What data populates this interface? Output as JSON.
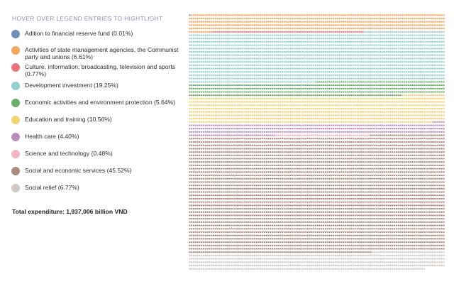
{
  "legend_title": "HOVER OVER LEGEND ENTRIES TO HIGHTLIGHT",
  "total_label": "Total expenditure: 1,937,006 billion VND",
  "chart_data": {
    "type": "waffle",
    "unit_total": 10000,
    "columns": 130,
    "series": [
      {
        "name": "Adition to financial reserve fund (0.01%)",
        "value": 0.01,
        "color": "#6f8fb8"
      },
      {
        "name": "Activities of state management agencies, the Communist party and unions (6.61%)",
        "value": 6.61,
        "color": "#f4a55c"
      },
      {
        "name": "Culture, information; broadcasting, television and sports (0.77%)",
        "value": 0.77,
        "color": "#e8717b"
      },
      {
        "name": "Development investment (19.25%)",
        "value": 19.25,
        "color": "#92cfcf"
      },
      {
        "name": "Economic activities and environment protection (5.64%)",
        "value": 5.64,
        "color": "#6aae67"
      },
      {
        "name": "Education and training (10.56%)",
        "value": 10.56,
        "color": "#f3d46e"
      },
      {
        "name": "Health care (4.40%)",
        "value": 4.4,
        "color": "#b98db9"
      },
      {
        "name": "Science and technology (0.48%)",
        "value": 0.48,
        "color": "#f4b3c2"
      },
      {
        "name": "Social and economic services (45.52%)",
        "value": 45.52,
        "color": "#a98a7e"
      },
      {
        "name": "Social relief (6.77%)",
        "value": 6.77,
        "color": "#cfc8c4"
      }
    ]
  }
}
